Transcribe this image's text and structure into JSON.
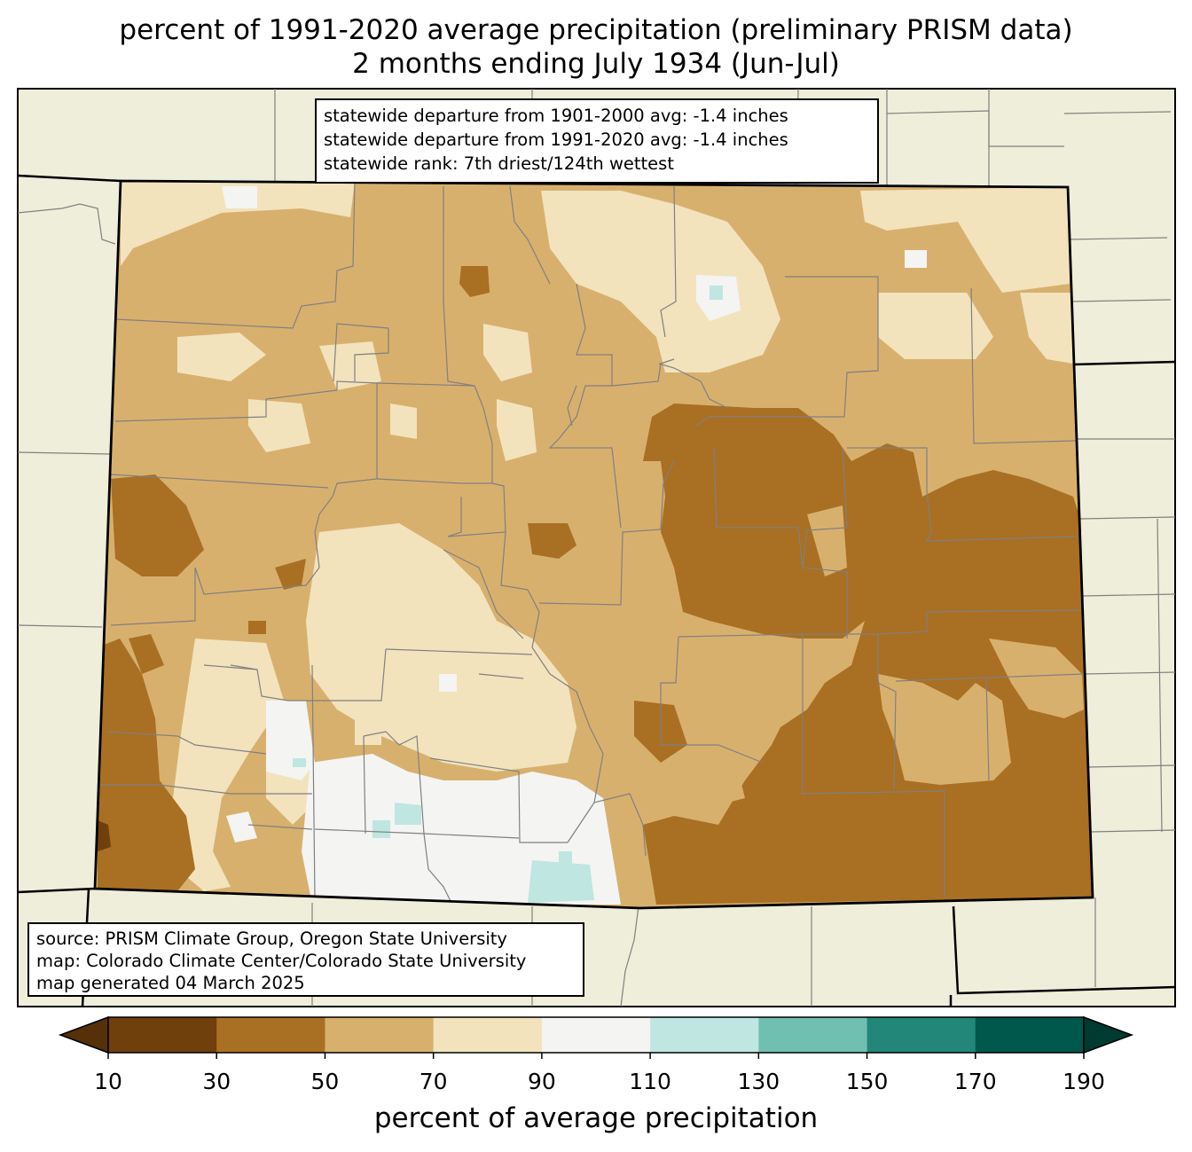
{
  "title": {
    "line1": "percent of 1991-2020 average precipitation (preliminary PRISM data)",
    "line2": "2 months ending July 1934 (Jun-Jul)"
  },
  "stats": {
    "line1": "statewide departure from 1901-2000 avg: -1.4 inches",
    "line2": "statewide departure from 1991-2020 avg: -1.4 inches",
    "line3": "statewide rank: 7th driest/124th wettest"
  },
  "source": {
    "line1": "source: PRISM Climate Group, Oregon State University",
    "line2": "map: Colorado Climate Center/Colorado State University",
    "line3": "map generated 04 March 2025"
  },
  "colorbar": {
    "label": "percent of average precipitation",
    "ticks": [
      "10",
      "30",
      "50",
      "70",
      "90",
      "110",
      "130",
      "150",
      "170",
      "190"
    ],
    "colors": [
      "#6f3f0c",
      "#a96f23",
      "#d8b06e",
      "#f2e3bd",
      "#f4f4f2",
      "#bfe6e0",
      "#70c0b2",
      "#228779",
      "#00574b"
    ],
    "under_color": "#553008",
    "over_color": "#003a30"
  },
  "map": {
    "land_color": "#efeedb",
    "state_border_color": "#000000",
    "county_border_color": "#808080"
  }
}
